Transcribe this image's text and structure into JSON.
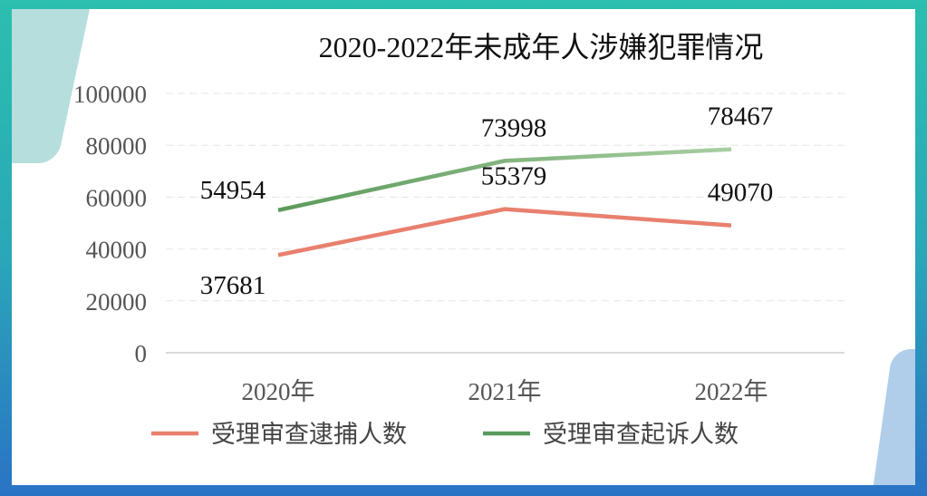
{
  "chart_data": {
    "type": "line",
    "title": "2020-2022年未成年人涉嫌犯罪情况",
    "categories": [
      "2020年",
      "2021年",
      "2022年"
    ],
    "series": [
      {
        "name": "受理审查逮捕人数",
        "values": [
          37681,
          55379,
          49070
        ],
        "color": "#e8806e"
      },
      {
        "name": "受理审查起诉人数",
        "values": [
          54954,
          73998,
          78467
        ],
        "color": "#6aa56a"
      }
    ],
    "yticks": [
      "0",
      "20000",
      "40000",
      "60000",
      "80000",
      "100000"
    ],
    "ylim": [
      0,
      100000
    ],
    "grid": true,
    "legend": "bottom"
  }
}
